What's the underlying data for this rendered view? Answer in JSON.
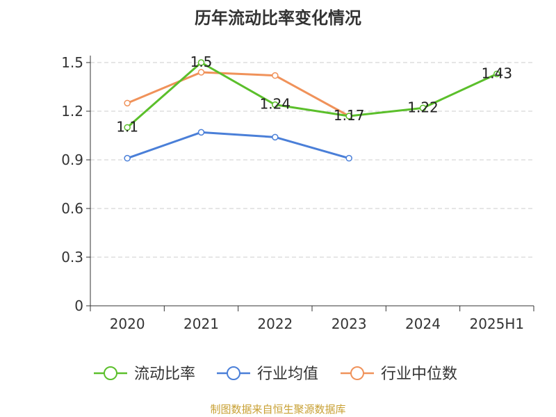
{
  "title": "历年流动比率变化情况",
  "source_text": "制图数据来自恒生聚源数据库",
  "chart_data": {
    "type": "line",
    "title": "历年流动比率变化情况",
    "categories": [
      "2020",
      "2021",
      "2022",
      "2023",
      "2024",
      "2025H1"
    ],
    "ylim": [
      0,
      1.5
    ],
    "yticks": [
      "0",
      "0.3",
      "0.6",
      "0.9",
      "1.2",
      "1.5"
    ],
    "grid": true,
    "legend_position": "bottom",
    "series": [
      {
        "name": "流动比率",
        "color": "#5bbf2b",
        "values": [
          1.1,
          1.5,
          1.24,
          1.17,
          1.22,
          1.43
        ],
        "labels": [
          "1.1",
          "1.5",
          "1.24",
          "1.17",
          "1.22",
          "1.43"
        ]
      },
      {
        "name": "行业均值",
        "color": "#4a7fd8",
        "values": [
          0.91,
          1.07,
          1.04,
          0.91,
          null,
          null
        ]
      },
      {
        "name": "行业中位数",
        "color": "#f0925a",
        "values": [
          1.25,
          1.44,
          1.42,
          1.17,
          null,
          null
        ]
      }
    ]
  }
}
